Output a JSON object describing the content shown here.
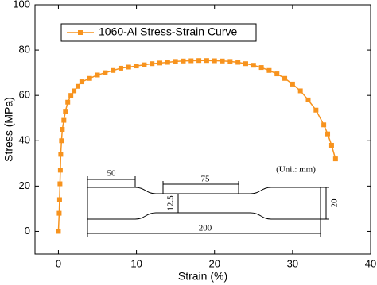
{
  "chart_data": {
    "type": "line",
    "x_label": "Strain (%)",
    "y_label": "Stress (MPa)",
    "x": [
      0,
      0.1,
      0.15,
      0.2,
      0.25,
      0.3,
      0.4,
      0.5,
      0.7,
      0.9,
      1.2,
      1.6,
      2,
      2.5,
      3,
      4,
      5,
      6,
      7,
      8,
      9,
      10,
      11,
      12,
      13,
      14,
      15,
      16,
      17,
      18,
      19,
      20,
      21,
      22,
      23,
      24,
      25,
      26,
      27,
      28,
      29,
      30,
      31,
      32,
      33,
      34,
      34.5,
      35,
      35.5
    ],
    "series": [
      {
        "name": "1060-Al Stress-Strain Curve",
        "color": "#f7931e",
        "values": [
          0,
          8,
          14,
          21,
          27,
          34,
          40,
          45,
          49,
          53,
          57,
          60,
          62,
          64,
          66,
          67.5,
          69,
          70,
          71,
          72,
          72.5,
          73,
          73.5,
          74,
          74.3,
          74.6,
          75,
          75.2,
          75.3,
          75.4,
          75.4,
          75.3,
          75.2,
          75,
          74.6,
          74,
          73.3,
          72.3,
          71,
          69.5,
          67.5,
          65,
          62,
          58,
          53.5,
          47,
          43,
          38,
          32
        ]
      }
    ],
    "xlim": [
      -3,
      40
    ],
    "ylim": [
      -10,
      100
    ],
    "xticks": [
      0,
      10,
      20,
      30,
      40
    ],
    "yticks": [
      0,
      20,
      40,
      60,
      80,
      100
    ],
    "annotations": [
      "(Unit: mm)",
      "50",
      "75",
      "12.5",
      "200",
      "20"
    ]
  }
}
